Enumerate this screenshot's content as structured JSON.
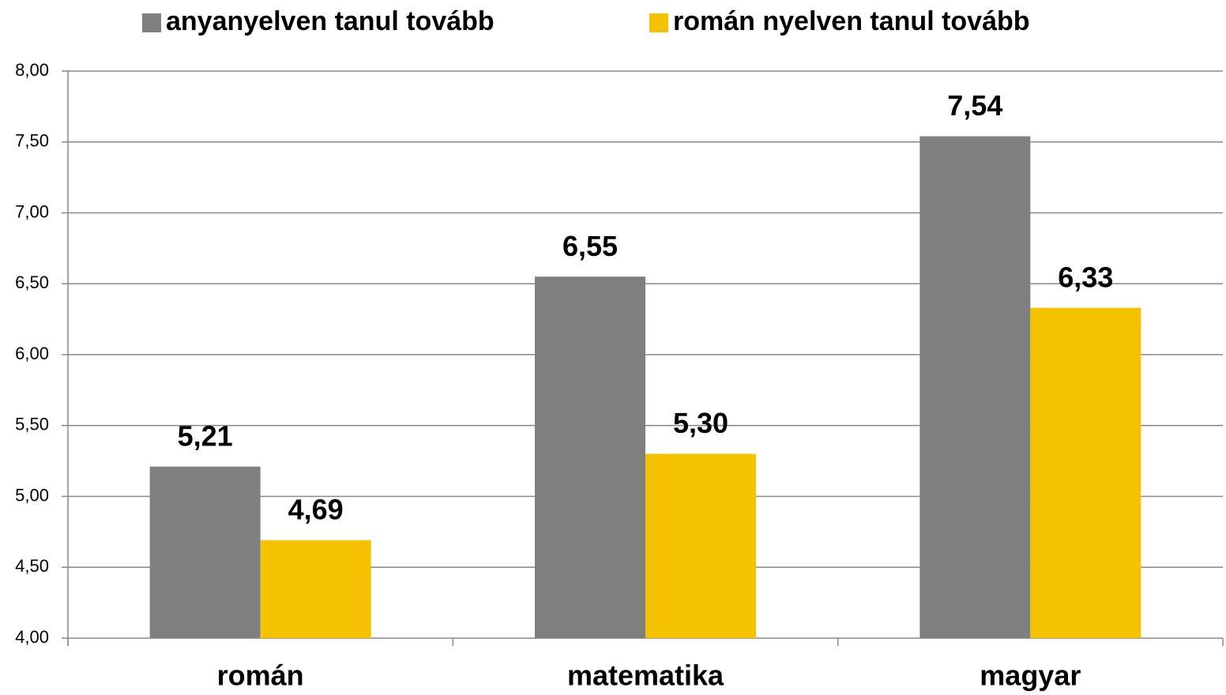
{
  "chart_data": {
    "type": "bar",
    "categories": [
      "román",
      "matematika",
      "magyar"
    ],
    "series": [
      {
        "name": "anyanyelven tanul tovább",
        "color": "#7f7f7f",
        "values": [
          5.21,
          6.55,
          7.54
        ],
        "value_labels": [
          "5,21",
          "6,55",
          "7,54"
        ]
      },
      {
        "name": "román nyelven tanul tovább",
        "color": "#f5c200",
        "values": [
          4.69,
          5.3,
          6.33
        ],
        "value_labels": [
          "4,69",
          "5,30",
          "6,33"
        ]
      }
    ],
    "ylim": [
      4,
      8
    ],
    "yticks": [
      {
        "value": 4,
        "label": "4,00"
      },
      {
        "value": 4.5,
        "label": "4,50"
      },
      {
        "value": 5,
        "label": "5,00"
      },
      {
        "value": 5.5,
        "label": "5,50"
      },
      {
        "value": 6,
        "label": "6,00"
      },
      {
        "value": 6.5,
        "label": "6,50"
      },
      {
        "value": 7,
        "label": "7,00"
      },
      {
        "value": 7.5,
        "label": "7,50"
      },
      {
        "value": 8,
        "label": "8,00"
      }
    ],
    "grid": true,
    "legend": "top"
  }
}
